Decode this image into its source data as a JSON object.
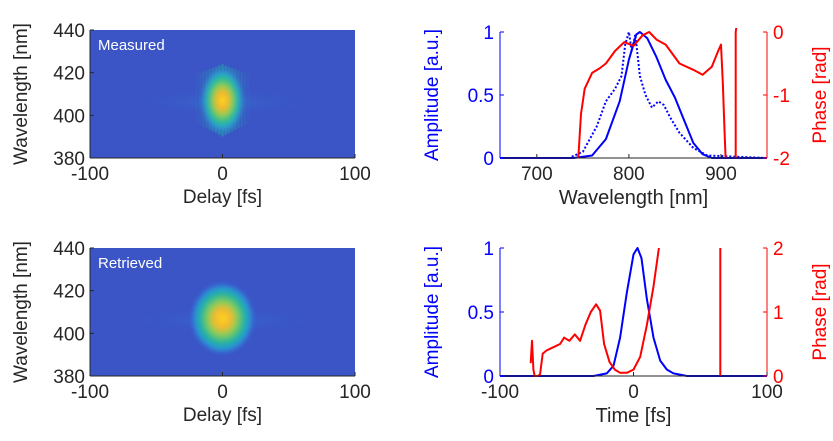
{
  "colors": {
    "amplitude": "#0000ff",
    "phase": "#ff0000",
    "axis": "#262626",
    "heatmap_background": "#3b55c6",
    "heatmap_mid": "#1fa2a8",
    "heatmap_peak": "#f2d81c"
  },
  "chart_data": [
    {
      "type": "heatmap",
      "annotation": "Measured",
      "xlabel": "Delay [fs]",
      "ylabel": "Wavelength [nm]",
      "xlim": [
        -100,
        100
      ],
      "ylim": [
        380,
        440
      ],
      "xticks": [
        -100,
        0,
        100
      ],
      "yticks": [
        380,
        400,
        420,
        440
      ],
      "peak": {
        "x": 0,
        "y": 407
      },
      "colormap": "parula"
    },
    {
      "type": "line",
      "xlabel": "Wavelength [nm]",
      "ylabel_left": "Amplitude [a.u.]",
      "ylabel_right": "Phase [rad]",
      "xlim": [
        660,
        950
      ],
      "ylim_left": [
        0,
        1
      ],
      "ylim_right": [
        -2,
        0
      ],
      "xticks": [
        700,
        800,
        900
      ],
      "yticks_left": [
        0,
        0.5,
        1
      ],
      "yticks_right": [
        -2,
        -1,
        0
      ],
      "series": [
        {
          "axis": "left",
          "style": "solid",
          "color": "#0000ff",
          "x": [
            660,
            740,
            760,
            775,
            790,
            800,
            808,
            812,
            820,
            830,
            840,
            850,
            860,
            870,
            880,
            890,
            950
          ],
          "y": [
            0,
            0,
            0.02,
            0.15,
            0.45,
            0.78,
            0.98,
            1.0,
            0.95,
            0.8,
            0.62,
            0.48,
            0.3,
            0.12,
            0.03,
            0,
            0
          ]
        },
        {
          "axis": "left",
          "style": "dotted",
          "color": "#0000ff",
          "x": [
            660,
            735,
            750,
            765,
            775,
            785,
            792,
            796,
            800,
            803,
            807,
            812,
            818,
            825,
            832,
            838,
            845,
            855,
            870,
            885,
            950
          ],
          "y": [
            0,
            0,
            0.05,
            0.25,
            0.45,
            0.55,
            0.65,
            0.9,
            1.0,
            0.85,
            0.98,
            0.65,
            0.5,
            0.4,
            0.45,
            0.42,
            0.32,
            0.2,
            0.08,
            0.02,
            0
          ]
        },
        {
          "axis": "right",
          "style": "solid",
          "color": "#ff0000",
          "x": [
            745,
            748,
            752,
            760,
            768,
            775,
            785,
            795,
            805,
            815,
            822,
            830,
            840,
            855,
            870,
            880,
            890,
            897,
            900,
            902,
            904,
            905
          ],
          "y": [
            -2.0,
            -1.3,
            -0.9,
            -0.65,
            -0.58,
            -0.5,
            -0.3,
            -0.16,
            -0.22,
            -0.05,
            0.0,
            -0.12,
            -0.2,
            -0.5,
            -0.6,
            -0.68,
            -0.55,
            -0.3,
            -0.2,
            -0.8,
            -1.6,
            -2.0
          ]
        },
        {
          "axis": "right",
          "style": "solid",
          "color": "#ff0000",
          "x": [
            916,
            916,
            917
          ],
          "y": [
            -2.0,
            0.0,
            0.1
          ]
        }
      ]
    },
    {
      "type": "heatmap",
      "annotation": "Retrieved",
      "xlabel": "Delay [fs]",
      "ylabel": "Wavelength [nm]",
      "xlim": [
        -100,
        100
      ],
      "ylim": [
        380,
        440
      ],
      "xticks": [
        -100,
        0,
        100
      ],
      "yticks": [
        380,
        400,
        420,
        440
      ],
      "peak": {
        "x": 0,
        "y": 407
      },
      "colormap": "parula"
    },
    {
      "type": "line",
      "xlabel": "Time [fs]",
      "ylabel_left": "Amplitude [a.u.]",
      "ylabel_right": "Phase [rad]",
      "xlim": [
        -100,
        100
      ],
      "ylim_left": [
        0,
        1
      ],
      "ylim_right": [
        0,
        2
      ],
      "xticks": [
        -100,
        0,
        100
      ],
      "yticks_left": [
        0,
        0.5,
        1
      ],
      "yticks_right": [
        0,
        1,
        2
      ],
      "series": [
        {
          "axis": "left",
          "style": "solid",
          "color": "#0000ff",
          "x": [
            -100,
            -30,
            -20,
            -15,
            -10,
            -5,
            0,
            3,
            6,
            10,
            15,
            20,
            25,
            30,
            40,
            100
          ],
          "y": [
            0,
            0,
            0.02,
            0.08,
            0.3,
            0.65,
            0.95,
            1.0,
            0.92,
            0.6,
            0.3,
            0.12,
            0.05,
            0.02,
            0,
            0
          ]
        },
        {
          "axis": "right",
          "style": "solid",
          "color": "#ff0000",
          "x": [
            -77,
            -76,
            -75,
            -74,
            -72,
            -70,
            -68,
            -65,
            -60,
            -55,
            -52,
            -48,
            -44,
            -40,
            -36,
            -32,
            -28,
            -25,
            -22,
            -18,
            -14,
            -10,
            -5,
            0,
            5,
            10,
            15,
            19
          ],
          "y": [
            0.2,
            0.55,
            0.1,
            0.0,
            0.0,
            0.02,
            0.35,
            0.4,
            0.45,
            0.5,
            0.6,
            0.55,
            0.65,
            0.55,
            0.8,
            1.0,
            1.12,
            1.02,
            0.5,
            0.22,
            0.1,
            0.05,
            0.05,
            0.1,
            0.3,
            0.8,
            1.4,
            2.0
          ]
        },
        {
          "axis": "right",
          "style": "solid",
          "color": "#ff0000",
          "x": [
            65,
            65
          ],
          "y": [
            0.0,
            2.0
          ]
        }
      ]
    }
  ]
}
